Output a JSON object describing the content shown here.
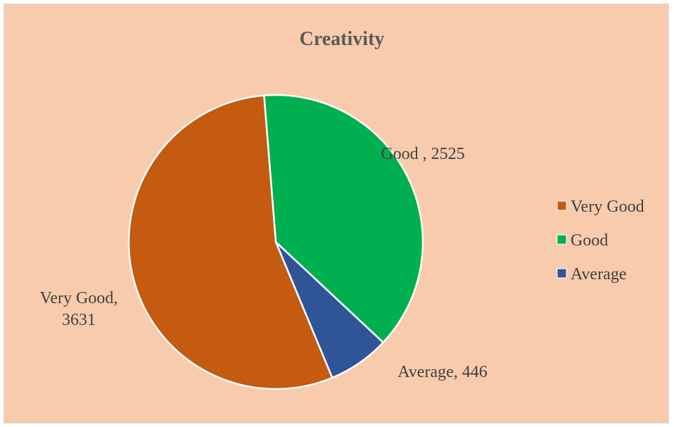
{
  "chart_data": {
    "type": "pie",
    "title": "Creativity",
    "categories": [
      "Very Good",
      "Good",
      "Average"
    ],
    "values": [
      3631,
      2525,
      446
    ],
    "colors": [
      "#c55a11",
      "#00b050",
      "#2f5597"
    ],
    "data_labels": [
      "Very Good, 3631",
      "Good , 2525",
      "Average, 446"
    ],
    "legend_position": "right",
    "slice_order_clockwise_from_top": [
      "Good",
      "Average",
      "Very Good"
    ]
  },
  "data_label_lines": {
    "very_good": [
      "Very Good,",
      "3631"
    ],
    "good": [
      "Good , 2525"
    ],
    "average": [
      "Average, 446"
    ]
  },
  "legend": {
    "items": [
      {
        "label": "Very Good",
        "color": "#c55a11"
      },
      {
        "label": "Good",
        "color": "#00b050"
      },
      {
        "label": "Average",
        "color": "#2f5597"
      }
    ]
  }
}
